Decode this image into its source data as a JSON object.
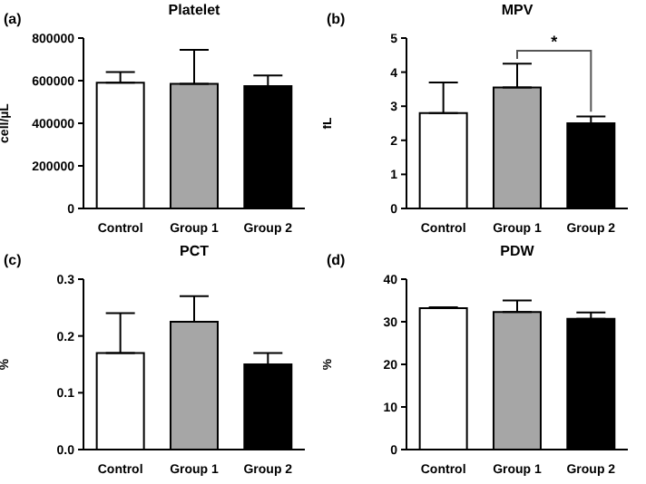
{
  "chart_data": [
    {
      "type": "bar",
      "title": "Platelet",
      "ylabel": "cell/µL",
      "categories": [
        "Control",
        "Group 1",
        "Group 2"
      ],
      "values": [
        590000,
        585000,
        575000
      ],
      "errors": [
        [
          590000,
          640000
        ],
        [
          585000,
          745000
        ],
        [
          575000,
          625000
        ]
      ],
      "colors": [
        "#ffffff",
        "#a6a6a6",
        "#000000"
      ],
      "ylim": [
        0,
        800000
      ],
      "yticks": [
        0,
        200000,
        400000,
        600000,
        800000
      ],
      "annotations": [
        "(a)"
      ]
    },
    {
      "type": "bar",
      "title": "MPV",
      "ylabel": "fL",
      "categories": [
        "Control",
        "Group 1",
        "Group 2"
      ],
      "values": [
        2.8,
        3.55,
        2.5
      ],
      "errors": [
        [
          2.8,
          3.7
        ],
        [
          3.55,
          4.25
        ],
        [
          2.5,
          2.7
        ]
      ],
      "colors": [
        "#ffffff",
        "#a6a6a6",
        "#000000"
      ],
      "ylim": [
        0,
        5
      ],
      "yticks": [
        0,
        1,
        2,
        3,
        4,
        5
      ],
      "annotations": [
        "(b)",
        "*"
      ]
    },
    {
      "type": "bar",
      "title": "PCT",
      "ylabel": "%",
      "categories": [
        "Control",
        "Group 1",
        "Group 2"
      ],
      "values": [
        0.17,
        0.225,
        0.15
      ],
      "errors": [
        [
          0.17,
          0.24
        ],
        [
          0.225,
          0.27
        ],
        [
          0.15,
          0.17
        ]
      ],
      "colors": [
        "#ffffff",
        "#a6a6a6",
        "#000000"
      ],
      "ylim": [
        0,
        0.3
      ],
      "yticks": [
        {
          "value": 0,
          "label": "0.0"
        },
        0.1,
        0.2,
        0.3
      ],
      "annotations": [
        "(c)"
      ]
    },
    {
      "type": "bar",
      "title": "PDW",
      "ylabel": "%",
      "categories": [
        "Control",
        "Group 1",
        "Group 2"
      ],
      "values": [
        33.2,
        32.3,
        30.7
      ],
      "errors": [
        [
          33.2,
          33.4
        ],
        [
          32.3,
          35
        ],
        [
          30.7,
          32.2
        ]
      ],
      "colors": [
        "#ffffff",
        "#a6a6a6",
        "#000000"
      ],
      "ylim": [
        0,
        40
      ],
      "yticks": [
        0,
        10,
        20,
        30,
        40
      ],
      "annotations": [
        "(d)"
      ]
    }
  ]
}
